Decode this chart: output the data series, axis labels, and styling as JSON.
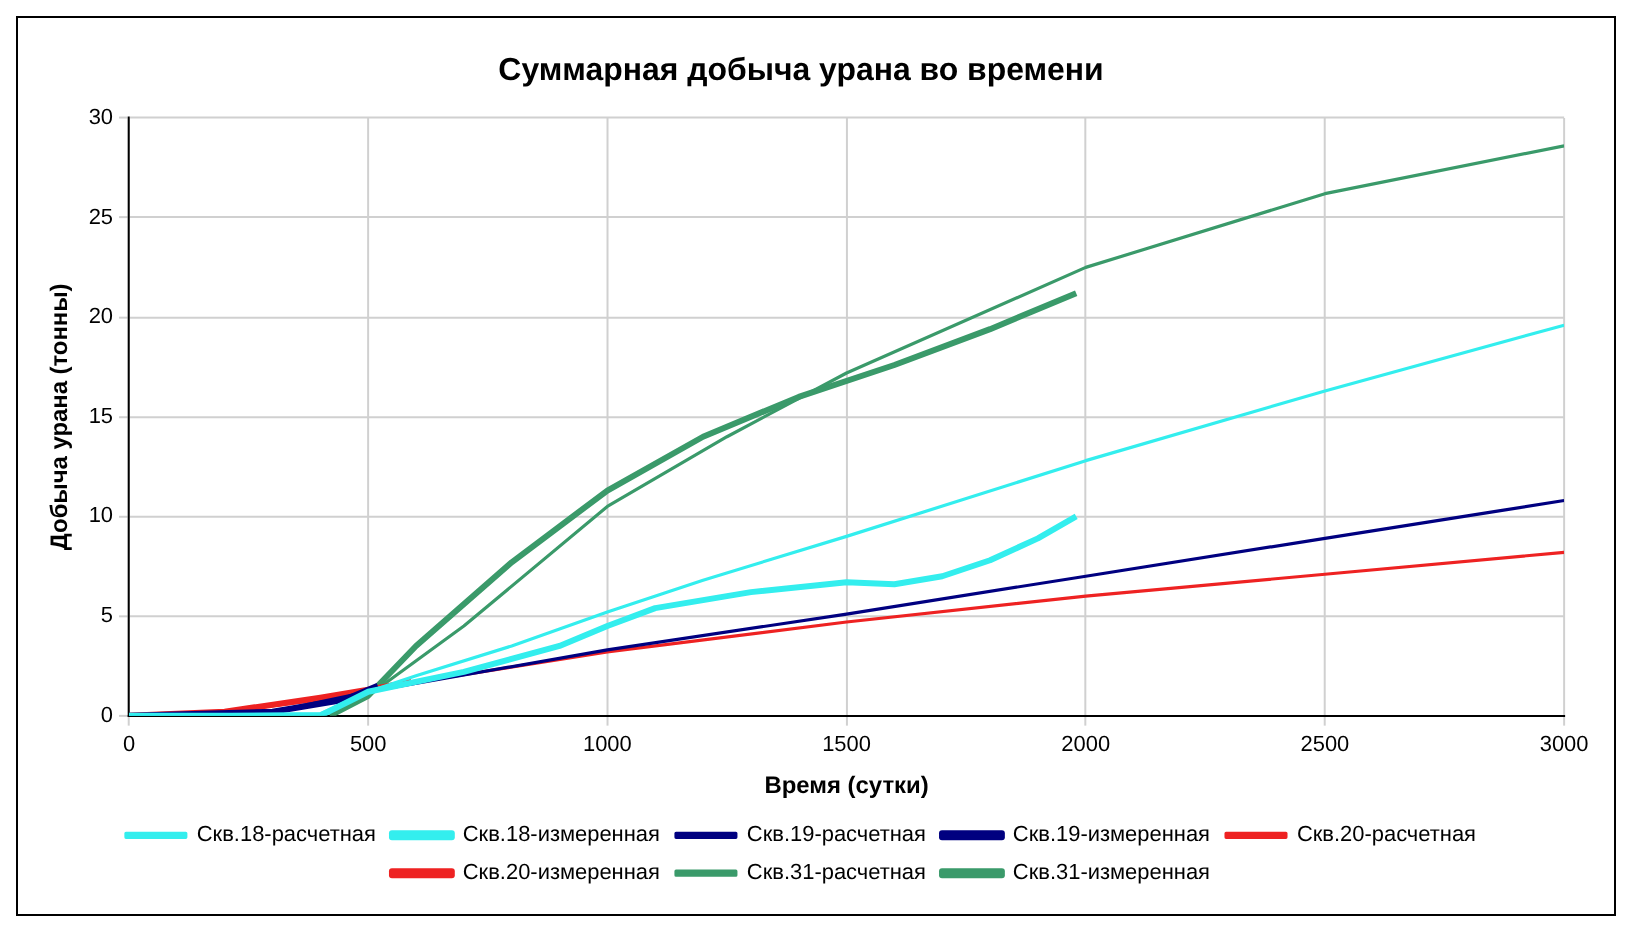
{
  "chart_data": {
    "type": "line",
    "title": "Суммарная добыча урана во времени",
    "xlabel": "Время (сутки)",
    "ylabel": "Добыча урана (тонны)",
    "xlim": [
      0,
      3000
    ],
    "xticks": [
      0,
      500,
      1000,
      1500,
      2000,
      2500,
      3000
    ],
    "ylim": [
      0,
      30
    ],
    "yticks": [
      0,
      5,
      10,
      15,
      20,
      25,
      30
    ],
    "grid": true,
    "legend": "bottom",
    "marker": "none",
    "line_style": "solid",
    "series": [
      {
        "name": "Скв.18-расчетная",
        "color": "#33eeee",
        "x": [
          0,
          400,
          500,
          600,
          800,
          1000,
          1200,
          1500,
          2000,
          2500,
          3000
        ],
        "values": [
          0,
          0.1,
          1.2,
          2,
          3.5,
          5.2,
          6.8,
          9,
          12.8,
          16.3,
          19.6
        ]
      },
      {
        "name": "Скв.18-измеренная",
        "color": "#33eeee",
        "x": [
          0,
          400,
          500,
          700,
          900,
          1000,
          1100,
          1300,
          1500,
          1600,
          1700,
          1800,
          1900,
          1980
        ],
        "values": [
          0,
          0,
          1.2,
          2.2,
          3.5,
          4.5,
          5.4,
          6.2,
          6.7,
          6.6,
          7,
          7.8,
          8.9,
          10
        ]
      },
      {
        "name": "Скв.19-расчетная",
        "color": "#000080",
        "x": [
          0,
          300,
          500,
          1000,
          1500,
          2000,
          2500,
          3000
        ],
        "values": [
          0,
          0.2,
          1.2,
          3.3,
          5.1,
          7,
          8.9,
          10.8
        ]
      },
      {
        "name": "Скв.19-измеренная",
        "color": "#000080",
        "x": [
          0,
          300,
          450,
          520
        ],
        "values": [
          0,
          0.2,
          0.8,
          1.5
        ]
      },
      {
        "name": "Скв.20-расчетная",
        "color": "#ee2222",
        "x": [
          0,
          200,
          400,
          500,
          1000,
          1500,
          2000,
          2500,
          3000
        ],
        "values": [
          0,
          0.2,
          0.8,
          1.3,
          3.2,
          4.7,
          6,
          7.1,
          8.2
        ]
      },
      {
        "name": "Скв.20-измеренная",
        "color": "#ee2222",
        "x": [
          0,
          200,
          400,
          500,
          590
        ],
        "values": [
          0,
          0.2,
          0.9,
          1.3,
          1.7
        ]
      },
      {
        "name": "Скв.31-расчетная",
        "color": "#3a9a6a",
        "x": [
          0,
          400,
          500,
          700,
          1000,
          1250,
          1500,
          2000,
          2500,
          3000
        ],
        "values": [
          0,
          0,
          1,
          4.5,
          10.5,
          14,
          17.2,
          22.5,
          26.2,
          28.6
        ]
      },
      {
        "name": "Скв.31-измеренная",
        "color": "#3a9a6a",
        "x": [
          420,
          500,
          600,
          800,
          1000,
          1200,
          1400,
          1600,
          1800,
          1980
        ],
        "values": [
          0,
          1,
          3.5,
          7.7,
          11.3,
          14,
          16,
          17.6,
          19.4,
          21.2
        ]
      }
    ]
  }
}
